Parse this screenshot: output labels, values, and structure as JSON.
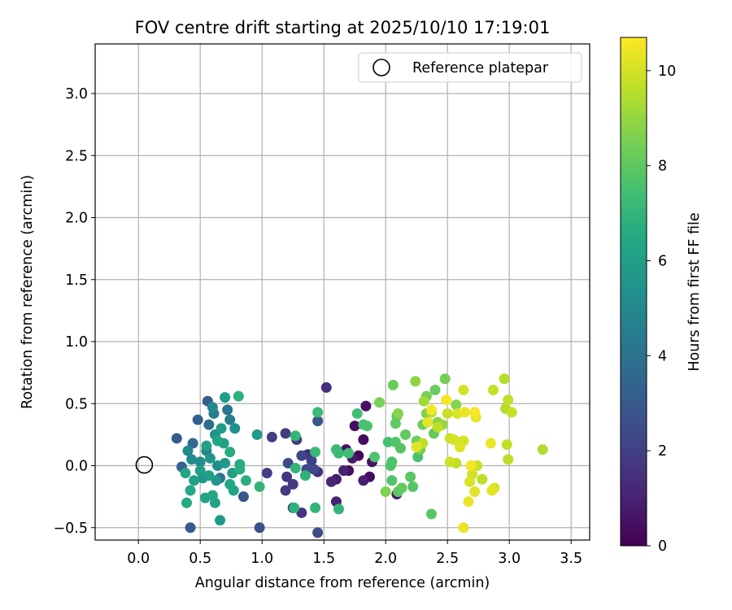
{
  "chart_data": {
    "type": "scatter",
    "title": "FOV centre drift starting at 2025/10/10 17:19:01",
    "xlabel": "Angular distance from reference (arcmin)",
    "ylabel": "Rotation from reference (arcmin)",
    "xlim": [
      -0.35,
      3.65
    ],
    "ylim": [
      -0.6,
      3.4
    ],
    "xticks": [
      0.0,
      0.5,
      1.0,
      1.5,
      2.0,
      2.5,
      3.0,
      3.5
    ],
    "xtick_labels": [
      "0.0",
      "0.5",
      "1.0",
      "1.5",
      "2.0",
      "2.5",
      "3.0",
      "3.5"
    ],
    "yticks": [
      -0.5,
      0.0,
      0.5,
      1.0,
      1.5,
      2.0,
      2.5,
      3.0
    ],
    "ytick_labels": [
      "−0.5",
      "0.0",
      "0.5",
      "1.0",
      "1.5",
      "2.0",
      "2.5",
      "3.0"
    ],
    "grid": true,
    "legend": {
      "position": "upper right",
      "entries": [
        "Reference platepar"
      ]
    },
    "reference_point": {
      "x": 0.0,
      "y": 0.0,
      "marker": "open-circle",
      "label": "Reference platepar"
    },
    "colorbar": {
      "label": "Hours from first FF file",
      "colormap": "viridis",
      "range": [
        0,
        10.7
      ],
      "ticks": [
        0,
        2,
        4,
        6,
        8,
        10
      ],
      "tick_labels": [
        "0",
        "2",
        "4",
        "6",
        "8",
        "10"
      ]
    },
    "points": [
      [
        1.78,
        0.08,
        0.2
      ],
      [
        1.82,
        0.21,
        0.3
      ],
      [
        1.75,
        0.32,
        0.4
      ],
      [
        1.84,
        0.48,
        0.5
      ],
      [
        1.68,
        0.13,
        0.6
      ],
      [
        1.73,
        0.06,
        0.7
      ],
      [
        1.6,
        -0.11,
        0.8
      ],
      [
        1.82,
        -0.12,
        0.9
      ],
      [
        1.66,
        -0.04,
        1.0
      ],
      [
        1.56,
        -0.13,
        1.1
      ],
      [
        1.87,
        -0.09,
        0.3
      ],
      [
        1.89,
        0.03,
        0.5
      ],
      [
        1.7,
        -0.04,
        0.4
      ],
      [
        2.09,
        -0.23,
        0.8
      ],
      [
        1.6,
        -0.29,
        1.0
      ],
      [
        1.52,
        0.63,
        1.4
      ],
      [
        1.45,
        -0.05,
        1.5
      ],
      [
        1.37,
        0.09,
        1.5
      ],
      [
        1.32,
        -0.38,
        1.6
      ],
      [
        1.28,
        0.21,
        1.7
      ],
      [
        1.25,
        -0.15,
        1.8
      ],
      [
        1.2,
        -0.09,
        1.7
      ],
      [
        1.19,
        -0.2,
        1.8
      ],
      [
        1.19,
        0.26,
        1.9
      ],
      [
        1.08,
        0.23,
        1.9
      ],
      [
        1.04,
        -0.06,
        2.0
      ],
      [
        1.32,
        0.08,
        2.2
      ],
      [
        1.36,
        -0.03,
        2.3
      ],
      [
        1.42,
        -0.03,
        2.2
      ],
      [
        1.45,
        -0.54,
        2.4
      ],
      [
        0.98,
        -0.5,
        2.6
      ],
      [
        1.45,
        0.36,
        2.8
      ],
      [
        0.85,
        -0.25,
        2.9
      ],
      [
        1.4,
        0.04,
        2.0
      ],
      [
        1.25,
        -0.34,
        2.1
      ],
      [
        1.21,
        0.02,
        2.4
      ],
      [
        0.42,
        -0.5,
        3.0
      ],
      [
        0.31,
        0.22,
        3.1
      ],
      [
        0.56,
        0.52,
        3.2
      ],
      [
        0.48,
        0.37,
        3.3
      ],
      [
        0.35,
        -0.01,
        3.4
      ],
      [
        0.44,
        0.18,
        3.6
      ],
      [
        0.57,
        0.33,
        3.8
      ],
      [
        0.66,
        -0.1,
        4.0
      ],
      [
        0.72,
        0.45,
        4.2
      ],
      [
        0.61,
        0.42,
        4.4
      ],
      [
        0.74,
        0.37,
        4.6
      ],
      [
        0.55,
        0.12,
        4.8
      ],
      [
        0.4,
        0.12,
        5.0
      ],
      [
        0.43,
        0.05,
        5.2
      ],
      [
        0.62,
        0.25,
        5.4
      ],
      [
        0.58,
        0.06,
        5.5
      ],
      [
        0.63,
        -0.12,
        5.6
      ],
      [
        0.67,
        0.3,
        5.8
      ],
      [
        0.7,
        0.55,
        5.9
      ],
      [
        0.45,
        -0.12,
        6.0
      ],
      [
        0.5,
        0.03,
        5.2
      ],
      [
        0.52,
        -0.1,
        5.6
      ],
      [
        0.64,
        0.0,
        5.3
      ],
      [
        0.66,
        -0.44,
        5.7
      ],
      [
        0.54,
        -0.26,
        6.1
      ],
      [
        0.77,
        -0.2,
        6.2
      ],
      [
        0.6,
        0.47,
        5.0
      ],
      [
        0.78,
        0.3,
        5.3
      ],
      [
        0.7,
        0.02,
        5.7
      ],
      [
        0.57,
        -0.08,
        6.0
      ],
      [
        0.74,
        -0.15,
        6.4
      ],
      [
        0.62,
        -0.3,
        6.2
      ],
      [
        0.82,
        -0.03,
        6.6
      ],
      [
        0.69,
        0.18,
        6.0
      ],
      [
        0.38,
        -0.06,
        6.3
      ],
      [
        0.42,
        -0.2,
        6.4
      ],
      [
        0.39,
        -0.3,
        6.5
      ],
      [
        0.55,
        0.16,
        6.1
      ],
      [
        0.82,
        0.01,
        6.5
      ],
      [
        0.81,
        0.56,
        6.8
      ],
      [
        0.87,
        -0.12,
        6.7
      ],
      [
        0.98,
        -0.17,
        7.0
      ],
      [
        0.64,
        0.2,
        6.3
      ],
      [
        0.74,
        0.11,
        6.6
      ],
      [
        0.6,
        -0.24,
        6.4
      ],
      [
        0.5,
        -0.04,
        6.0
      ],
      [
        0.76,
        -0.06,
        5.9
      ],
      [
        0.96,
        0.25,
        5.8
      ],
      [
        1.27,
        0.24,
        7.0
      ],
      [
        1.26,
        -0.34,
        6.8
      ],
      [
        1.27,
        -0.02,
        7.0
      ],
      [
        1.35,
        -0.08,
        6.9
      ],
      [
        1.43,
        0.11,
        7.1
      ],
      [
        1.45,
        0.43,
        7.2
      ],
      [
        1.62,
        -0.35,
        7.0
      ],
      [
        1.62,
        0.1,
        7.1
      ],
      [
        1.7,
        0.1,
        7.3
      ],
      [
        1.77,
        0.42,
        7.4
      ],
      [
        1.82,
        0.33,
        7.5
      ],
      [
        1.85,
        0.32,
        7.6
      ],
      [
        1.91,
        0.07,
        7.7
      ],
      [
        1.43,
        -0.34,
        7.0
      ],
      [
        1.6,
        0.13,
        7.2
      ],
      [
        2.02,
        0.19,
        7.5
      ],
      [
        2.05,
        0.03,
        7.6
      ],
      [
        2.05,
        -0.12,
        7.7
      ],
      [
        2.08,
        0.19,
        7.8
      ],
      [
        2.09,
        0.4,
        7.9
      ],
      [
        2.1,
        -0.21,
        8.0
      ],
      [
        2.12,
        0.14,
        7.8
      ],
      [
        2.06,
        0.65,
        8.2
      ],
      [
        2.13,
        -0.18,
        8.1
      ],
      [
        2.2,
        -0.09,
        7.9
      ],
      [
        2.26,
        0.07,
        7.6
      ],
      [
        2.3,
        0.33,
        8.3
      ],
      [
        2.33,
        0.56,
        8.4
      ],
      [
        2.37,
        -0.39,
        7.9
      ],
      [
        2.28,
        0.13,
        8.5
      ],
      [
        2.33,
        0.42,
        8.6
      ],
      [
        2.39,
        0.26,
        8.1
      ],
      [
        2.42,
        0.35,
        8.8
      ],
      [
        2.46,
        0.33,
        9.0
      ],
      [
        2.48,
        0.7,
        8.4
      ],
      [
        2.57,
        0.49,
        8.7
      ],
      [
        2.4,
        0.61,
        8.2
      ],
      [
        2.24,
        0.68,
        8.9
      ],
      [
        2.25,
        0.2,
        8.3
      ],
      [
        2.0,
        -0.21,
        8.6
      ],
      [
        2.1,
        0.42,
        8.7
      ],
      [
        2.16,
        0.25,
        8.1
      ],
      [
        1.95,
        0.51,
        8.5
      ],
      [
        2.08,
        0.34,
        8.0
      ],
      [
        2.22,
        -0.17,
        7.8
      ],
      [
        2.04,
        0.0,
        7.7
      ],
      [
        2.31,
        0.52,
        9.2
      ],
      [
        2.37,
        0.43,
        9.4
      ],
      [
        2.42,
        0.31,
        9.6
      ],
      [
        2.5,
        0.42,
        9.8
      ],
      [
        2.55,
        0.21,
        10.0
      ],
      [
        2.6,
        0.15,
        10.2
      ],
      [
        2.64,
        0.43,
        10.4
      ],
      [
        2.69,
        0.0,
        10.5
      ],
      [
        2.72,
        0.43,
        10.6
      ],
      [
        2.73,
        0.39,
        10.3
      ],
      [
        2.58,
        0.42,
        10.1
      ],
      [
        2.63,
        0.61,
        10.0
      ],
      [
        2.52,
        0.03,
        9.9
      ],
      [
        2.57,
        0.02,
        9.7
      ],
      [
        2.63,
        -0.5,
        10.4
      ],
      [
        2.68,
        -0.13,
        10.1
      ],
      [
        2.7,
        -0.07,
        9.9
      ],
      [
        2.72,
        -0.21,
        10.2
      ],
      [
        2.74,
        0.0,
        9.8
      ],
      [
        2.78,
        -0.11,
        9.6
      ],
      [
        2.85,
        0.18,
        10.4
      ],
      [
        2.86,
        -0.2,
        10.3
      ],
      [
        2.88,
        -0.18,
        10.1
      ],
      [
        2.87,
        0.61,
        9.8
      ],
      [
        2.96,
        0.7,
        9.5
      ],
      [
        2.99,
        0.53,
        9.7
      ],
      [
        3.02,
        0.43,
        9.8
      ],
      [
        2.97,
        0.46,
        9.5
      ],
      [
        2.98,
        0.17,
        9.7
      ],
      [
        2.99,
        0.05,
        9.6
      ],
      [
        3.27,
        0.13,
        9.4
      ],
      [
        2.63,
        0.2,
        10.0
      ],
      [
        2.52,
        0.22,
        9.9
      ],
      [
        2.3,
        0.18,
        9.6
      ],
      [
        2.25,
        0.15,
        10.2
      ],
      [
        2.34,
        0.35,
        10.3
      ],
      [
        2.37,
        0.45,
        10.5
      ],
      [
        2.49,
        0.53,
        10.6
      ],
      [
        2.67,
        -0.29,
        10.4
      ],
      [
        2.61,
        0.19,
        9.3
      ]
    ]
  }
}
